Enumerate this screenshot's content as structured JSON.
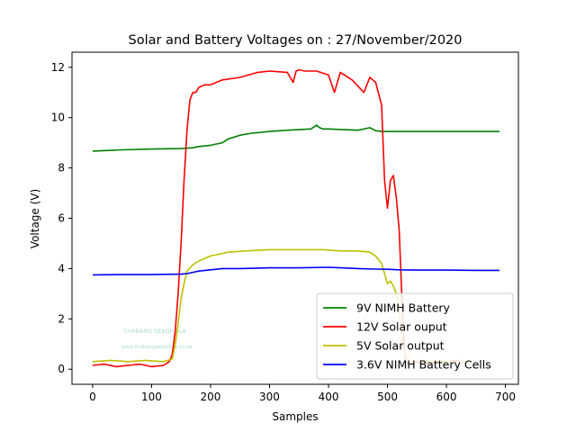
{
  "chart_data": {
    "type": "line",
    "title": "Solar and Battery Voltages on : 27/November/2020",
    "xlabel": "Samples",
    "ylabel": "Voltage (V)",
    "xlim": [
      -35,
      722
    ],
    "ylim": [
      -0.6,
      12.6
    ],
    "xticks": [
      0,
      100,
      200,
      300,
      400,
      500,
      600,
      700
    ],
    "yticks": [
      0,
      2,
      4,
      6,
      8,
      10,
      12
    ],
    "grid": false,
    "legend_position": "lower right",
    "watermark": [
      "THABANG SEKGHULA",
      "www.thabangsekghula.co.za"
    ],
    "series": [
      {
        "name": "9V NIMH Battery",
        "color": "#008000",
        "x": [
          0,
          50,
          100,
          150,
          170,
          180,
          200,
          220,
          230,
          250,
          270,
          300,
          330,
          370,
          380,
          385,
          390,
          400,
          450,
          470,
          480,
          490,
          500,
          550,
          600,
          650,
          690
        ],
        "y": [
          8.67,
          8.72,
          8.75,
          8.77,
          8.8,
          8.85,
          8.9,
          9.0,
          9.15,
          9.3,
          9.38,
          9.45,
          9.5,
          9.55,
          9.7,
          9.6,
          9.55,
          9.55,
          9.5,
          9.6,
          9.48,
          9.45,
          9.45,
          9.45,
          9.45,
          9.45,
          9.45
        ]
      },
      {
        "name": "12V Solar ouput",
        "color": "#ff0000",
        "x": [
          0,
          20,
          40,
          60,
          80,
          100,
          120,
          130,
          135,
          140,
          145,
          150,
          155,
          160,
          165,
          170,
          175,
          180,
          190,
          200,
          220,
          250,
          280,
          300,
          330,
          340,
          345,
          350,
          360,
          380,
          400,
          410,
          420,
          440,
          460,
          470,
          480,
          490,
          495,
          500,
          505,
          510,
          515,
          520,
          525,
          530,
          540,
          550,
          560,
          580,
          600,
          620
        ],
        "y": [
          0.15,
          0.2,
          0.1,
          0.15,
          0.2,
          0.1,
          0.15,
          0.3,
          0.6,
          1.5,
          3.0,
          5.0,
          7.5,
          9.5,
          10.7,
          11.0,
          11.0,
          11.2,
          11.3,
          11.3,
          11.5,
          11.6,
          11.8,
          11.85,
          11.8,
          11.4,
          11.85,
          11.9,
          11.85,
          11.85,
          11.7,
          11.0,
          11.8,
          11.5,
          11.0,
          11.6,
          11.4,
          10.5,
          7.5,
          6.4,
          7.5,
          7.7,
          6.8,
          5.5,
          2.5,
          0.3,
          0.2,
          0.3,
          0.2,
          0.25,
          0.3,
          0.35
        ]
      },
      {
        "name": "5V Solar output",
        "color": "#bfbf00",
        "x": [
          0,
          30,
          60,
          90,
          120,
          135,
          140,
          145,
          150,
          155,
          160,
          170,
          180,
          200,
          230,
          260,
          300,
          330,
          360,
          390,
          420,
          450,
          470,
          480,
          490,
          495,
          500,
          505,
          510,
          515,
          520,
          525,
          530,
          540,
          560,
          600,
          650
        ],
        "y": [
          0.3,
          0.35,
          0.3,
          0.35,
          0.3,
          0.4,
          1.0,
          1.8,
          2.8,
          3.4,
          3.9,
          4.15,
          4.3,
          4.5,
          4.65,
          4.7,
          4.75,
          4.75,
          4.75,
          4.75,
          4.7,
          4.7,
          4.65,
          4.5,
          4.2,
          3.8,
          3.4,
          3.5,
          3.3,
          3.0,
          2.3,
          1.2,
          0.5,
          0.3,
          0.35,
          0.3,
          0.25
        ]
      },
      {
        "name": "3.6V NIMH Battery Cells",
        "color": "#0000ff",
        "x": [
          0,
          50,
          100,
          150,
          160,
          170,
          180,
          200,
          220,
          250,
          280,
          300,
          350,
          400,
          450,
          480,
          500,
          520,
          550,
          600,
          650,
          690
        ],
        "y": [
          3.75,
          3.76,
          3.76,
          3.78,
          3.8,
          3.85,
          3.9,
          3.95,
          4.0,
          4.0,
          4.02,
          4.03,
          4.03,
          4.05,
          4.0,
          3.98,
          3.97,
          3.95,
          3.94,
          3.94,
          3.93,
          3.93
        ]
      }
    ]
  }
}
